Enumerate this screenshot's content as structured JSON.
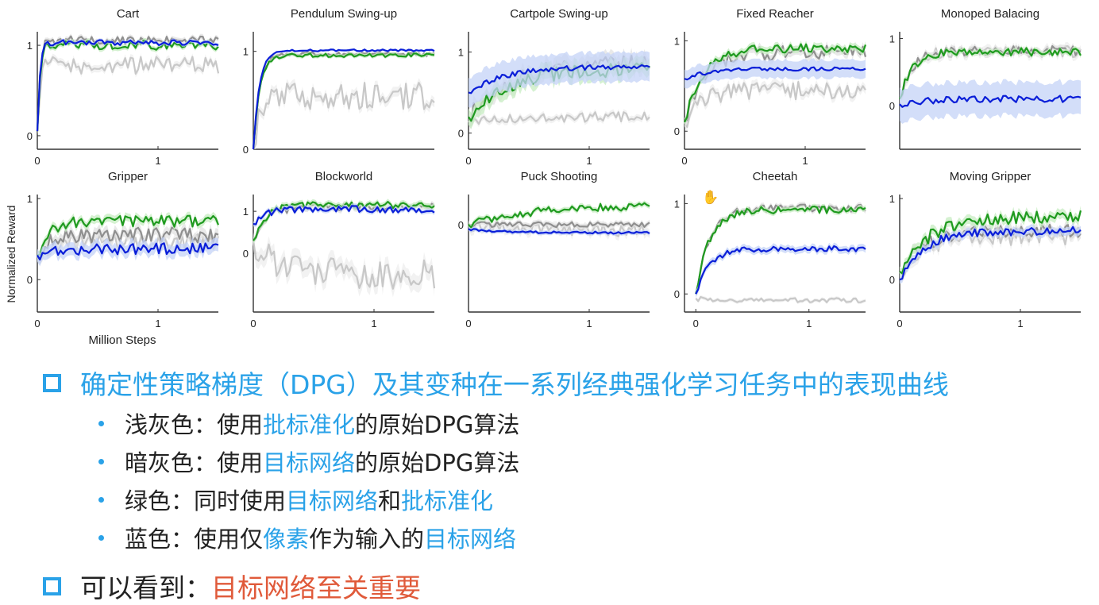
{
  "chart_data": [
    {
      "type": "line",
      "title": "Cart",
      "xlabel": "",
      "ylabel": "Normalized Reward",
      "yticks": [
        "0",
        "1"
      ],
      "xticks": [
        "0",
        "1"
      ],
      "ylim": [
        -0.15,
        1.15
      ],
      "xlim": [
        0,
        1.5
      ],
      "seed": 11,
      "series": [
        {
          "start": 0.05,
          "end": 0.78,
          "rise": 0.02,
          "noise": 0.1,
          "band": 0.04
        },
        {
          "start": 0.05,
          "end": 1.05,
          "rise": 0.02,
          "noise": 0.05,
          "band": 0.03
        },
        {
          "start": 0.05,
          "end": 1.0,
          "rise": 0.02,
          "noise": 0.05,
          "band": 0.03
        },
        {
          "start": 0.05,
          "end": 1.03,
          "rise": 0.02,
          "noise": 0.03,
          "band": 0.02
        }
      ]
    },
    {
      "type": "line",
      "title": "Pendulum Swing-up",
      "xlabel": "",
      "ylabel": "",
      "yticks": [
        "0",
        "1"
      ],
      "xticks": [],
      "ylim": [
        0,
        1.2
      ],
      "xlim": [
        0,
        1.5
      ],
      "seed": 23,
      "series": [
        {
          "start": 0.0,
          "end": 0.55,
          "rise": 0.05,
          "noise": 0.14,
          "band": 0.05
        },
        {
          "start": 0.0,
          "end": 0.97,
          "rise": 0.05,
          "noise": 0.02,
          "band": 0.02
        },
        {
          "start": 0.0,
          "end": 0.96,
          "rise": 0.05,
          "noise": 0.02,
          "band": 0.02
        },
        {
          "start": 0.0,
          "end": 1.01,
          "rise": 0.05,
          "noise": 0.01,
          "band": 0.01
        }
      ]
    },
    {
      "type": "line",
      "title": "Cartpole Swing-up",
      "xlabel": "",
      "ylabel": "",
      "yticks": [
        "0",
        "1"
      ],
      "xticks": [
        "0",
        "1"
      ],
      "ylim": [
        -0.2,
        1.25
      ],
      "xlim": [
        0,
        1.5
      ],
      "seed": 37,
      "series": [
        {
          "start": 0.15,
          "end": 0.2,
          "rise": 0.3,
          "noise": 0.06,
          "band": 0.04
        },
        {
          "start": 0.2,
          "end": 0.88,
          "rise": 0.35,
          "noise": 0.1,
          "band": 0.1
        },
        {
          "start": 0.2,
          "end": 0.78,
          "rise": 0.3,
          "noise": 0.09,
          "band": 0.1
        },
        {
          "start": 0.5,
          "end": 0.82,
          "rise": 0.3,
          "noise": 0.03,
          "band": 0.18
        }
      ]
    },
    {
      "type": "line",
      "title": "Fixed Reacher",
      "xlabel": "",
      "ylabel": "",
      "yticks": [
        "0",
        "1"
      ],
      "xticks": [
        "0",
        "1"
      ],
      "ylim": [
        -0.2,
        1.1
      ],
      "xlim": [
        0,
        1.5
      ],
      "seed": 41,
      "series": [
        {
          "start": 0.1,
          "end": 0.45,
          "rise": 0.15,
          "noise": 0.1,
          "band": 0.05
        },
        {
          "start": 0.1,
          "end": 0.87,
          "rise": 0.15,
          "noise": 0.08,
          "band": 0.05
        },
        {
          "start": 0.1,
          "end": 0.92,
          "rise": 0.15,
          "noise": 0.05,
          "band": 0.04
        },
        {
          "start": 0.58,
          "end": 0.69,
          "rise": 0.2,
          "noise": 0.02,
          "band": 0.1
        }
      ]
    },
    {
      "type": "line",
      "title": "Monoped Balacing",
      "xlabel": "",
      "ylabel": "",
      "yticks": [
        "0",
        "1"
      ],
      "xticks": [],
      "ylim": [
        -0.65,
        1.1
      ],
      "xlim": [
        0,
        1.5
      ],
      "seed": 53,
      "series": [
        {
          "start": 0.1,
          "end": 0.8,
          "rise": 0.1,
          "noise": 0.09,
          "band": 0.06
        },
        {
          "start": 0.1,
          "end": 0.82,
          "rise": 0.1,
          "noise": 0.07,
          "band": 0.05
        },
        {
          "start": 0.1,
          "end": 0.8,
          "rise": 0.1,
          "noise": 0.06,
          "band": 0.04
        },
        {
          "start": 0.02,
          "end": 0.1,
          "rise": 0.2,
          "noise": 0.05,
          "band": 0.25
        }
      ]
    },
    {
      "type": "line",
      "title": "Gripper",
      "xlabel": "",
      "ylabel": "",
      "yticks": [
        "0",
        "1"
      ],
      "xticks": [
        "0",
        "1"
      ],
      "ylim": [
        -0.4,
        1.05
      ],
      "xlim": [
        0,
        1.5
      ],
      "seed": 61,
      "series": [
        {
          "start": 0.3,
          "end": 0.45,
          "rise": 0.1,
          "noise": 0.12,
          "band": 0.05
        },
        {
          "start": 0.3,
          "end": 0.55,
          "rise": 0.1,
          "noise": 0.1,
          "band": 0.07
        },
        {
          "start": 0.3,
          "end": 0.72,
          "rise": 0.1,
          "noise": 0.07,
          "band": 0.05
        },
        {
          "start": 0.3,
          "end": 0.38,
          "rise": 0.1,
          "noise": 0.07,
          "band": 0.08
        }
      ]
    },
    {
      "type": "line",
      "title": "Blockworld",
      "xlabel": "",
      "ylabel": "",
      "yticks": [
        "0",
        "1"
      ],
      "xticks": [
        "0",
        "1"
      ],
      "ylim": [
        -1.4,
        1.4
      ],
      "xlim": [
        0,
        1.5
      ],
      "seed": 71,
      "series": [
        {
          "start": 0.3,
          "end": -0.5,
          "rise": 0.2,
          "noise": 0.35,
          "band": 0.2
        },
        {
          "start": 0.3,
          "end": 1.1,
          "rise": 0.1,
          "noise": 0.09,
          "band": 0.07
        },
        {
          "start": 0.3,
          "end": 1.15,
          "rise": 0.1,
          "noise": 0.08,
          "band": 0.07
        },
        {
          "start": 0.7,
          "end": 1.05,
          "rise": 0.1,
          "noise": 0.08,
          "band": 0.06
        }
      ]
    },
    {
      "type": "line",
      "title": "Puck Shooting",
      "xlabel": "",
      "ylabel": "",
      "yticks": [
        "0"
      ],
      "xticks": [
        "0",
        "1"
      ],
      "ylim": [
        -1.6,
        0.55
      ],
      "xlim": [
        0,
        1.5
      ],
      "seed": 83,
      "series": [
        {
          "start": 0.0,
          "end": -0.1,
          "rise": 0.3,
          "noise": 0.12,
          "band": 0.08
        },
        {
          "start": 0.0,
          "end": 0.0,
          "rise": 0.3,
          "noise": 0.05,
          "band": 0.05
        },
        {
          "start": 0.0,
          "end": 0.35,
          "rise": 0.5,
          "noise": 0.07,
          "band": 0.05
        },
        {
          "start": -0.08,
          "end": -0.15,
          "rise": 0.3,
          "noise": 0.02,
          "band": 0.04
        }
      ]
    },
    {
      "type": "line",
      "title": "Cheetah",
      "xlabel": "",
      "ylabel": "",
      "yticks": [
        "0",
        "1"
      ],
      "xticks": [
        "0",
        "1"
      ],
      "ylim": [
        -0.2,
        1.1
      ],
      "xlim": [
        -0.1,
        1.5
      ],
      "seed": 97,
      "series": [
        {
          "start": -0.05,
          "end": -0.07,
          "rise": 0.1,
          "noise": 0.025,
          "band": 0.02
        },
        {
          "start": 0.0,
          "end": 0.95,
          "rise": 0.12,
          "noise": 0.04,
          "band": 0.03
        },
        {
          "start": 0.0,
          "end": 0.93,
          "rise": 0.12,
          "noise": 0.04,
          "band": 0.03
        },
        {
          "start": 0.0,
          "end": 0.5,
          "rise": 0.12,
          "noise": 0.03,
          "band": 0.04
        }
      ]
    },
    {
      "type": "line",
      "title": "Moving Gripper",
      "xlabel": "",
      "ylabel": "",
      "yticks": [
        "0",
        "1"
      ],
      "xticks": [
        "0",
        "1"
      ],
      "ylim": [
        -0.4,
        1.05
      ],
      "xlim": [
        0,
        1.5
      ],
      "seed": 109,
      "series": [
        {
          "start": 0.1,
          "end": 0.55,
          "rise": 0.2,
          "noise": 0.12,
          "band": 0.06
        },
        {
          "start": 0.1,
          "end": 0.6,
          "rise": 0.2,
          "noise": 0.08,
          "band": 0.06
        },
        {
          "start": 0.1,
          "end": 0.78,
          "rise": 0.25,
          "noise": 0.08,
          "band": 0.06
        },
        {
          "start": 0.0,
          "end": 0.6,
          "rise": 0.2,
          "noise": 0.05,
          "band": 0.05
        }
      ]
    }
  ],
  "figure": {
    "ylabel": "Normalized Reward",
    "xlabel": "Million Steps",
    "series_colors": [
      "#c8c8c8",
      "#8f8f8f",
      "#1f9a1f",
      "#0a1ed8"
    ],
    "band_colors": [
      "#eeeeee",
      "#e2e2e2",
      "#c7ecc2",
      "#c4d3f7"
    ]
  },
  "text": {
    "title_pre": "确定性策略梯度（DPG）及其变种在一系列经典强化学习任务中的表现曲线",
    "b1_a": "浅灰色：使用",
    "b1_hl": "批标准化",
    "b1_b": "的原始DPG算法",
    "b2_a": "暗灰色：使用",
    "b2_hl": "目标网络",
    "b2_b": "的原始DPG算法",
    "b3_a": "绿色：同时使用",
    "b3_hl1": "目标网络",
    "b3_b": "和",
    "b3_hl2": "批标准化",
    "b4_a": "蓝色：使用仅",
    "b4_hl1": "像素",
    "b4_b": "作为输入的",
    "b4_hl2": "目标网络",
    "concl_a": "可以看到：",
    "concl_hl": "目标网络至关重要"
  },
  "colors": {
    "accent": "#2aa2e8",
    "highlight_red": "#e05a3a"
  }
}
